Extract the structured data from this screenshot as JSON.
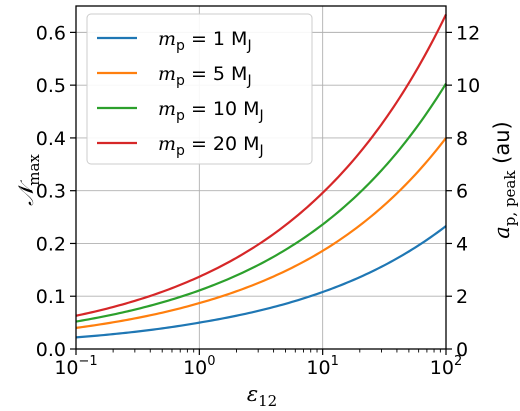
{
  "chart_data": {
    "type": "line",
    "xlabel": "ε12",
    "ylabel_left": "𝒩max",
    "ylabel_right": "ap, peak (au)",
    "x_scale": "log",
    "xlim": [
      0.1,
      100
    ],
    "ylim_left": [
      0.0,
      0.65
    ],
    "ylim_right": [
      0,
      13
    ],
    "grid": true,
    "legend_position": "top-left",
    "x_ticks": [
      {
        "value": 0.1,
        "base": "10",
        "exp": "−1"
      },
      {
        "value": 1,
        "base": "10",
        "exp": "0"
      },
      {
        "value": 10,
        "base": "10",
        "exp": "1"
      },
      {
        "value": 100,
        "base": "10",
        "exp": "2"
      }
    ],
    "y_ticks_left": [
      "0.0",
      "0.1",
      "0.2",
      "0.3",
      "0.4",
      "0.5",
      "0.6"
    ],
    "y_ticks_right": [
      "0",
      "2",
      "4",
      "6",
      "8",
      "10",
      "12"
    ],
    "series": [
      {
        "name": "mp = 1 MJ",
        "mass": "1",
        "color": "#1f77b4",
        "x": [
          0.1,
          1,
          10,
          100
        ],
        "y": [
          0.022,
          0.05,
          0.108,
          0.233
        ]
      },
      {
        "name": "mp = 5 MJ",
        "mass": "5",
        "color": "#ff7f0e",
        "x": [
          0.1,
          1,
          10,
          100
        ],
        "y": [
          0.04,
          0.087,
          0.186,
          0.4
        ]
      },
      {
        "name": "mp = 10 MJ",
        "mass": "10",
        "color": "#2ca02c",
        "x": [
          0.1,
          1,
          10,
          100
        ],
        "y": [
          0.052,
          0.111,
          0.236,
          0.503
        ]
      },
      {
        "name": "mp = 20 MJ",
        "mass": "20",
        "color": "#d62728",
        "x": [
          0.1,
          1,
          10,
          100
        ],
        "y": [
          0.063,
          0.137,
          0.296,
          0.634
        ]
      }
    ]
  }
}
